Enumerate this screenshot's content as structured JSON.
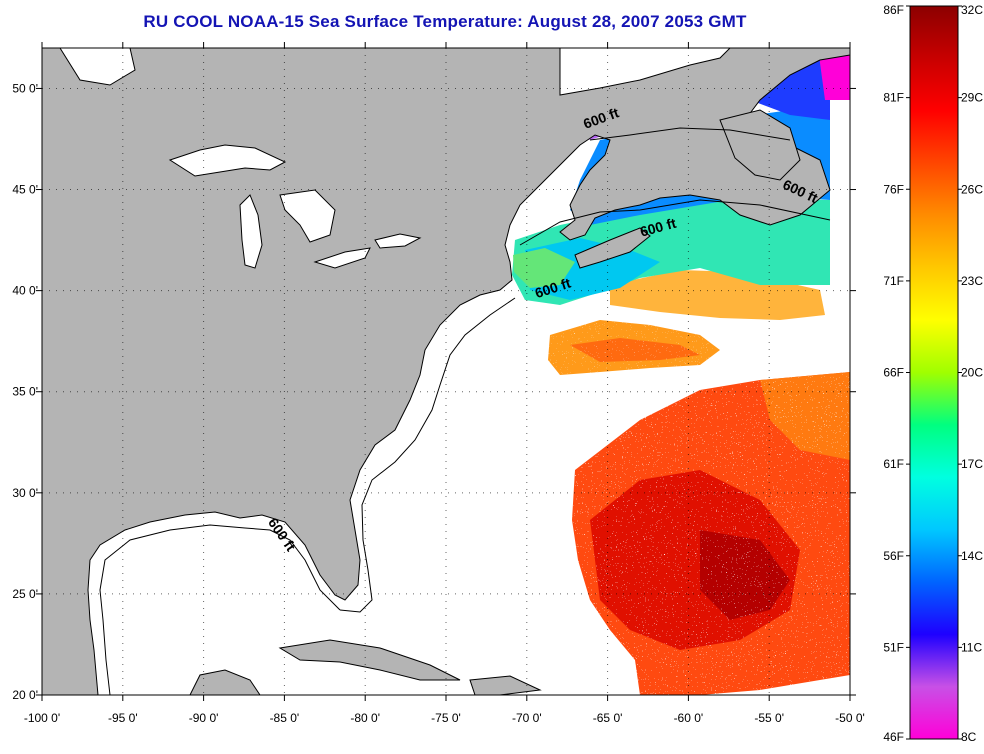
{
  "title": "RU COOL  NOAA-15  Sea Surface Temperature:  August 28, 2007 2053 GMT",
  "map": {
    "lon_range": [
      -100,
      -50
    ],
    "lat_range": [
      20,
      52
    ],
    "lon_ticks": [
      {
        "value": -100,
        "label": "-100 0'"
      },
      {
        "value": -95,
        "label": "-95 0'"
      },
      {
        "value": -90,
        "label": "-90 0'"
      },
      {
        "value": -85,
        "label": "-85 0'"
      },
      {
        "value": -80,
        "label": "-80 0'"
      },
      {
        "value": -75,
        "label": "-75 0'"
      },
      {
        "value": -70,
        "label": "-70 0'"
      },
      {
        "value": -65,
        "label": "-65 0'"
      },
      {
        "value": -60,
        "label": "-60 0'"
      },
      {
        "value": -55,
        "label": "-55 0'"
      },
      {
        "value": -50,
        "label": "-50 0'"
      }
    ],
    "lat_ticks": [
      {
        "value": 20,
        "label": "20 0'"
      },
      {
        "value": 25,
        "label": "25 0'"
      },
      {
        "value": 30,
        "label": "30 0'"
      },
      {
        "value": 35,
        "label": "35 0'"
      },
      {
        "value": 40,
        "label": "40 0'"
      },
      {
        "value": 45,
        "label": "45 0'"
      },
      {
        "value": 50,
        "label": "50 0'"
      }
    ],
    "grid": "dotted",
    "land_color": "#b4b4b4",
    "water_color": "#ffffff",
    "isobath_labels": [
      {
        "text": "600 ft",
        "lon": -65.3,
        "lat": 48.3
      },
      {
        "text": "600 ft",
        "lon": -53.2,
        "lat": 44.7
      },
      {
        "text": "600 ft",
        "lon": -61.8,
        "lat": 42.9
      },
      {
        "text": "600 ft",
        "lon": -68.3,
        "lat": 39.9
      },
      {
        "text": "600 ft",
        "lon": -85.4,
        "lat": 27.8
      }
    ]
  },
  "colorbar": {
    "min_c": 8,
    "max_c": 32,
    "gradient": [
      "#ff00d8",
      "#c850e6",
      "#1e00ff",
      "#0064ff",
      "#00c8ff",
      "#00ffe0",
      "#00ff80",
      "#a0ff00",
      "#ffff00",
      "#ffc800",
      "#ff8c00",
      "#ff4600",
      "#ff0000",
      "#c80000",
      "#8c0000"
    ],
    "celsius_labels": [
      "32C",
      "29C",
      "26C",
      "23C",
      "20C",
      "17C",
      "14C",
      "11C",
      "8C"
    ],
    "fahrenheit_labels": [
      "86F",
      "81F",
      "76F",
      "71F",
      "66F",
      "61F",
      "56F",
      "51F",
      "46F"
    ]
  }
}
